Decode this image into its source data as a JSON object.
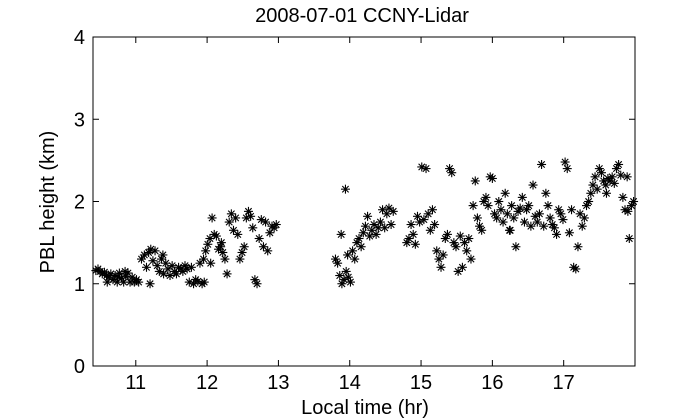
{
  "chart_data": {
    "type": "scatter",
    "title": "2008-07-01 CCNY-Lidar",
    "xlabel": "Local time (hr)",
    "ylabel": "PBL height (km)",
    "xlim": [
      10.4,
      18.0
    ],
    "ylim": [
      0,
      4
    ],
    "xticks": [
      11,
      12,
      13,
      14,
      15,
      16,
      17
    ],
    "yticks": [
      0,
      1,
      2,
      3,
      4
    ],
    "grid": false,
    "marker": "asterisk",
    "marker_color": "#000000",
    "series": [
      {
        "points": [
          [
            10.44,
            1.16
          ],
          [
            10.47,
            1.18
          ],
          [
            10.5,
            1.15
          ],
          [
            10.53,
            1.12
          ],
          [
            10.56,
            1.14
          ],
          [
            10.59,
            1.1
          ],
          [
            10.62,
            1.08
          ],
          [
            10.65,
            1.12
          ],
          [
            10.68,
            1.05
          ],
          [
            10.71,
            1.1
          ],
          [
            10.74,
            1.02
          ],
          [
            10.77,
            1.13
          ],
          [
            10.8,
            1.07
          ],
          [
            10.83,
            1.02
          ],
          [
            10.86,
            1.09
          ],
          [
            10.89,
            1.13
          ],
          [
            10.92,
            1.02
          ],
          [
            10.95,
            1.08
          ],
          [
            10.98,
            1.02
          ],
          [
            11.01,
            1.05
          ],
          [
            11.04,
            1.02
          ],
          [
            10.6,
            1.02
          ],
          [
            10.75,
            1.08
          ],
          [
            10.85,
            1.15
          ],
          [
            11.08,
            1.3
          ],
          [
            11.12,
            1.35
          ],
          [
            11.15,
            1.2
          ],
          [
            11.18,
            1.38
          ],
          [
            11.21,
            1.42
          ],
          [
            11.24,
            1.28
          ],
          [
            11.27,
            1.4
          ],
          [
            11.3,
            1.22
          ],
          [
            11.33,
            1.15
          ],
          [
            11.36,
            1.3
          ],
          [
            11.39,
            1.12
          ],
          [
            11.42,
            1.25
          ],
          [
            11.45,
            1.18
          ],
          [
            11.48,
            1.1
          ],
          [
            11.51,
            1.22
          ],
          [
            11.54,
            1.15
          ],
          [
            11.57,
            1.12
          ],
          [
            11.6,
            1.2
          ],
          [
            11.63,
            1.18
          ],
          [
            11.66,
            1.15
          ],
          [
            11.69,
            1.22
          ],
          [
            11.72,
            1.18
          ],
          [
            11.75,
            1.02
          ],
          [
            11.78,
            1.2
          ],
          [
            11.81,
            1.0
          ],
          [
            11.84,
            1.05
          ],
          [
            11.87,
            1.03
          ],
          [
            11.9,
            1.25
          ],
          [
            11.93,
            1.0
          ],
          [
            11.96,
            1.02
          ],
          [
            11.2,
            1.0
          ],
          [
            11.38,
            1.35
          ],
          [
            11.95,
            1.3
          ],
          [
            11.98,
            1.4
          ],
          [
            12.01,
            1.48
          ],
          [
            12.04,
            1.55
          ],
          [
            12.07,
            1.8
          ],
          [
            12.1,
            1.6
          ],
          [
            12.13,
            1.58
          ],
          [
            12.16,
            1.42
          ],
          [
            12.19,
            1.45
          ],
          [
            12.22,
            1.38
          ],
          [
            12.25,
            1.3
          ],
          [
            12.28,
            1.12
          ],
          [
            12.31,
            1.75
          ],
          [
            12.34,
            1.85
          ],
          [
            12.37,
            1.65
          ],
          [
            12.4,
            1.8
          ],
          [
            12.43,
            1.6
          ],
          [
            12.46,
            1.3
          ],
          [
            12.49,
            1.38
          ],
          [
            12.52,
            1.45
          ],
          [
            12.55,
            1.8
          ],
          [
            12.58,
            1.88
          ],
          [
            12.61,
            1.82
          ],
          [
            12.64,
            1.68
          ],
          [
            12.67,
            1.05
          ],
          [
            12.7,
            1.0
          ],
          [
            12.73,
            1.55
          ],
          [
            12.76,
            1.78
          ],
          [
            12.79,
            1.45
          ],
          [
            12.82,
            1.75
          ],
          [
            12.85,
            1.4
          ],
          [
            12.88,
            1.62
          ],
          [
            12.91,
            1.7
          ],
          [
            12.94,
            1.68
          ],
          [
            12.97,
            1.72
          ],
          [
            12.05,
            1.25
          ],
          [
            12.2,
            1.5
          ],
          [
            13.8,
            1.3
          ],
          [
            13.83,
            1.25
          ],
          [
            13.86,
            1.1
          ],
          [
            13.89,
            1.0
          ],
          [
            13.92,
            1.05
          ],
          [
            13.95,
            1.15
          ],
          [
            13.98,
            1.08
          ],
          [
            14.01,
            1.02
          ],
          [
            13.88,
            1.6
          ],
          [
            13.94,
            2.15
          ],
          [
            14.04,
            1.4
          ],
          [
            14.07,
            1.3
          ],
          [
            14.1,
            1.5
          ],
          [
            14.13,
            1.55
          ],
          [
            14.16,
            1.45
          ],
          [
            14.19,
            1.62
          ],
          [
            14.22,
            1.7
          ],
          [
            14.25,
            1.82
          ],
          [
            14.28,
            1.58
          ],
          [
            14.31,
            1.65
          ],
          [
            14.34,
            1.72
          ],
          [
            14.37,
            1.6
          ],
          [
            14.4,
            1.68
          ],
          [
            14.43,
            1.75
          ],
          [
            14.46,
            1.9
          ],
          [
            14.49,
            1.68
          ],
          [
            14.52,
            1.85
          ],
          [
            14.55,
            1.92
          ],
          [
            14.58,
            1.72
          ],
          [
            14.61,
            1.88
          ],
          [
            13.97,
            1.35
          ],
          [
            14.8,
            1.5
          ],
          [
            14.83,
            1.55
          ],
          [
            14.86,
            1.72
          ],
          [
            14.89,
            1.6
          ],
          [
            14.92,
            1.48
          ],
          [
            14.95,
            1.82
          ],
          [
            14.98,
            1.75
          ],
          [
            15.01,
            2.42
          ],
          [
            15.04,
            1.78
          ],
          [
            15.07,
            2.4
          ],
          [
            15.1,
            1.85
          ],
          [
            15.13,
            1.65
          ],
          [
            15.16,
            1.9
          ],
          [
            15.19,
            1.72
          ],
          [
            15.22,
            1.4
          ],
          [
            15.25,
            1.3
          ],
          [
            15.28,
            1.2
          ],
          [
            15.31,
            1.35
          ],
          [
            15.34,
            1.55
          ],
          [
            15.37,
            1.6
          ],
          [
            15.4,
            2.4
          ],
          [
            15.43,
            2.35
          ],
          [
            15.46,
            1.5
          ],
          [
            15.49,
            1.45
          ],
          [
            15.52,
            1.15
          ],
          [
            15.55,
            1.58
          ],
          [
            15.58,
            1.2
          ],
          [
            15.61,
            1.5
          ],
          [
            15.64,
            1.4
          ],
          [
            15.67,
            1.55
          ],
          [
            15.7,
            1.3
          ],
          [
            15.73,
            1.95
          ],
          [
            15.76,
            2.25
          ],
          [
            15.79,
            1.8
          ],
          [
            15.82,
            1.7
          ],
          [
            15.85,
            1.65
          ],
          [
            15.88,
            2.0
          ],
          [
            15.91,
            2.05
          ],
          [
            15.94,
            1.95
          ],
          [
            15.97,
            2.3
          ],
          [
            16.0,
            2.28
          ],
          [
            16.03,
            1.85
          ],
          [
            16.06,
            1.8
          ],
          [
            16.09,
            2.0
          ],
          [
            16.12,
            1.9
          ],
          [
            16.15,
            1.75
          ],
          [
            16.18,
            2.1
          ],
          [
            16.21,
            1.85
          ],
          [
            16.24,
            1.65
          ],
          [
            16.27,
            1.95
          ],
          [
            16.3,
            1.8
          ],
          [
            16.33,
            1.45
          ],
          [
            16.36,
            1.88
          ],
          [
            16.39,
            1.92
          ],
          [
            16.42,
            2.05
          ],
          [
            16.45,
            1.75
          ],
          [
            16.48,
            1.9
          ],
          [
            16.51,
            1.95
          ],
          [
            16.54,
            1.7
          ],
          [
            16.57,
            2.2
          ],
          [
            16.6,
            1.82
          ],
          [
            16.63,
            1.75
          ],
          [
            16.66,
            1.85
          ],
          [
            16.69,
            2.45
          ],
          [
            16.72,
            1.7
          ],
          [
            16.75,
            2.1
          ],
          [
            16.78,
            1.95
          ],
          [
            16.81,
            1.8
          ],
          [
            16.84,
            1.72
          ],
          [
            16.87,
            1.68
          ],
          [
            16.9,
            1.6
          ],
          [
            16.93,
            1.9
          ],
          [
            16.96,
            1.85
          ],
          [
            16.99,
            1.78
          ],
          [
            17.02,
            2.48
          ],
          [
            17.05,
            2.4
          ],
          [
            17.08,
            1.62
          ],
          [
            17.11,
            1.9
          ],
          [
            17.14,
            1.2
          ],
          [
            17.17,
            1.18
          ],
          [
            17.2,
            1.45
          ],
          [
            17.23,
            1.85
          ],
          [
            17.26,
            1.7
          ],
          [
            17.29,
            1.8
          ],
          [
            17.32,
            1.95
          ],
          [
            17.35,
            2.0
          ],
          [
            17.38,
            2.1
          ],
          [
            17.41,
            2.2
          ],
          [
            17.44,
            2.3
          ],
          [
            17.47,
            2.15
          ],
          [
            17.5,
            2.4
          ],
          [
            17.53,
            2.35
          ],
          [
            17.56,
            2.25
          ],
          [
            17.59,
            2.2
          ],
          [
            17.62,
            2.28
          ],
          [
            17.65,
            2.25
          ],
          [
            17.68,
            2.3
          ],
          [
            17.71,
            2.22
          ],
          [
            17.74,
            2.4
          ],
          [
            17.77,
            2.45
          ],
          [
            17.8,
            2.32
          ],
          [
            17.83,
            2.05
          ],
          [
            17.86,
            1.9
          ],
          [
            17.89,
            2.3
          ],
          [
            17.92,
            1.55
          ],
          [
            17.95,
            1.95
          ],
          [
            17.98,
            2.0
          ],
          [
            17.9,
            1.88
          ],
          [
            17.6,
            2.1
          ],
          [
            16.25,
            1.65
          ]
        ]
      }
    ]
  }
}
